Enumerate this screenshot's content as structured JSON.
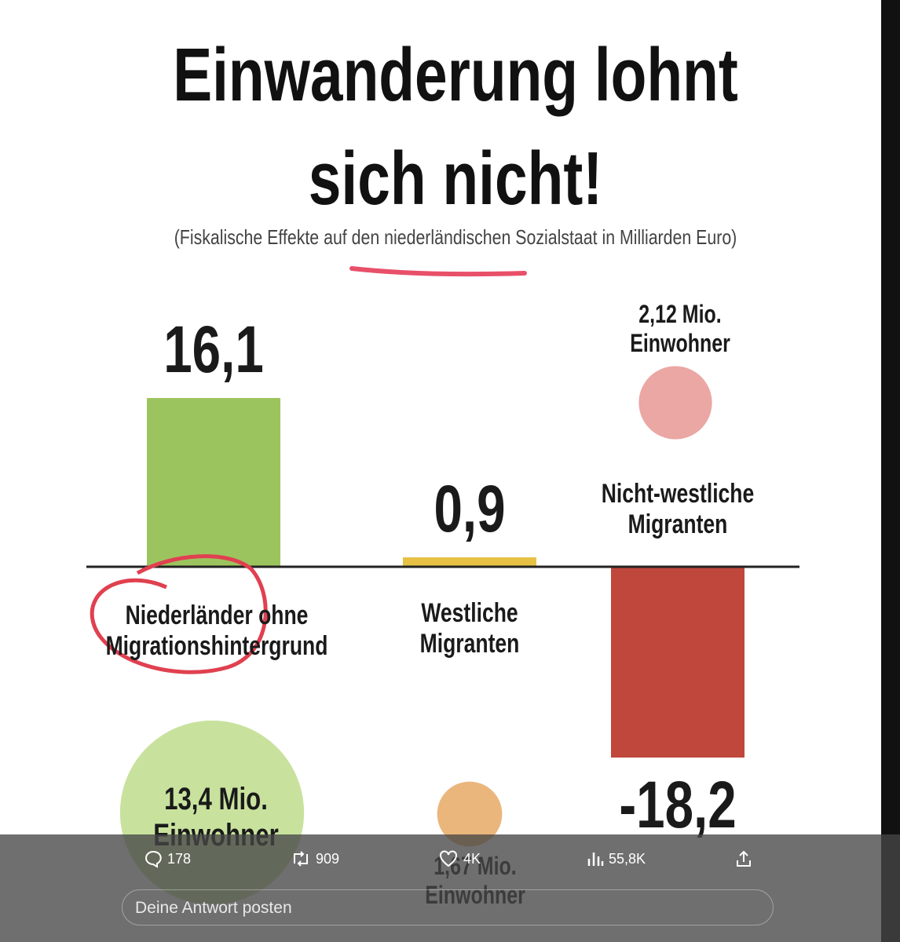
{
  "chart_data": {
    "type": "bar",
    "title": "Einwanderung lohnt sich nicht!",
    "subtitle": "(Fiskalische Effekte auf den niederländischen Sozialstaat in Milliarden Euro)",
    "categories": [
      "Niederländer ohne Migrationshintergrund",
      "Westliche Migranten",
      "Nicht-westliche Migranten"
    ],
    "values": [
      16.1,
      0.9,
      -18.2
    ],
    "value_labels": [
      "16,1",
      "0,9",
      "-18,2"
    ],
    "colors": [
      "#9cc45e",
      "#e6c144",
      "#c0473c"
    ],
    "populations": [
      13.4,
      1.67,
      2.12
    ],
    "population_labels": [
      "13,4 Mio. Einwohner",
      "1,67 Mio. Einwohner",
      "2,12 Mio. Einwohner"
    ],
    "population_colors": [
      "#c8e29e",
      "#eab67c",
      "#eba7a3"
    ]
  },
  "toolbar": {
    "replies": "178",
    "reposts": "909",
    "likes": "4K",
    "views": "55,8K"
  },
  "reply_placeholder": "Deine Antwort posten"
}
